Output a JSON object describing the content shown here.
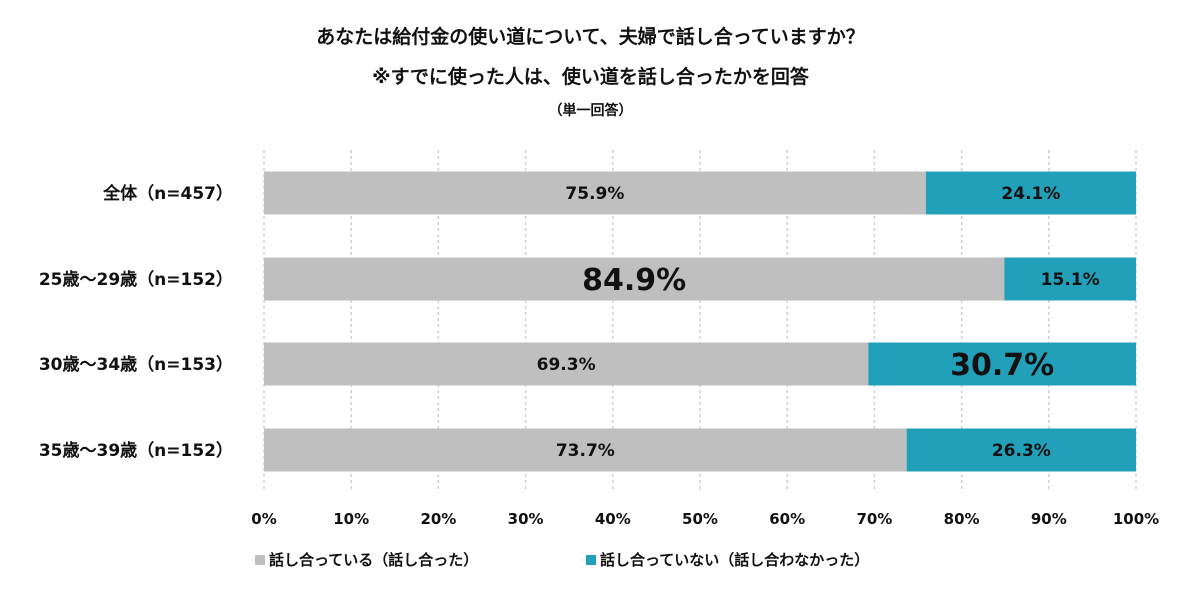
{
  "chart_data": {
    "type": "bar",
    "orientation": "horizontal",
    "stacked": true,
    "percent_stacked": true,
    "title": "あなたは給付金の使い道について、夫婦で話し合っていますか？",
    "subtitle": "※すでに使った人は、使い道を話し合ったかを回答",
    "note": "（単一回答）",
    "categories": [
      "全体（n=457）",
      "25歳〜29歳（n=152）",
      "30歳〜34歳（n=153）",
      "35歳〜39歳（n=152）"
    ],
    "series": [
      {
        "name": "話し合っている（話し合った）",
        "color": "#bfbfbf",
        "values": [
          75.9,
          84.9,
          69.3,
          73.7
        ],
        "labels": [
          "75.9%",
          "84.9%",
          "69.3%",
          "73.7%"
        ],
        "emphasized": [
          false,
          true,
          false,
          false
        ]
      },
      {
        "name": "話し合っていない（話し合わなかった）",
        "color": "#23a0b9",
        "values": [
          24.1,
          15.1,
          30.7,
          26.3
        ],
        "labels": [
          "24.1%",
          "15.1%",
          "30.7%",
          "26.3%"
        ],
        "emphasized": [
          false,
          false,
          true,
          false
        ]
      }
    ],
    "xlim": [
      0,
      100
    ],
    "xticks": [
      "0%",
      "10%",
      "20%",
      "30%",
      "40%",
      "50%",
      "60%",
      "70%",
      "80%",
      "90%",
      "100%"
    ],
    "grid": true,
    "legend_position": "bottom-left"
  }
}
